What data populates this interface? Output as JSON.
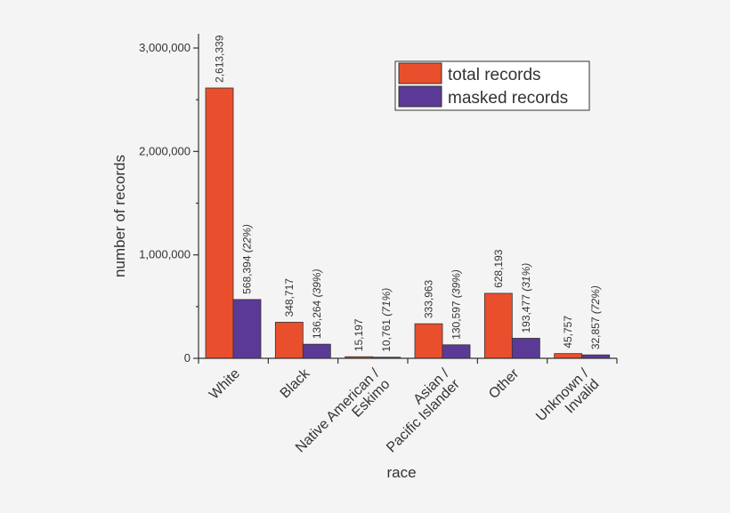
{
  "chart_data": {
    "type": "bar",
    "xlabel": "race",
    "ylabel": "number of records",
    "ylim": [
      0,
      3000000
    ],
    "yticks": [
      0,
      1000000,
      2000000,
      3000000
    ],
    "ytick_labels": [
      "0",
      "1,000,000",
      "2,000,000",
      "3,000,000"
    ],
    "grid": false,
    "legend_position": "top-right",
    "categories": [
      [
        "White"
      ],
      [
        "Black"
      ],
      [
        "Native American /",
        "Eskimo"
      ],
      [
        "Asian /",
        "Pacific Islander"
      ],
      [
        "Other"
      ],
      [
        "Unknown /",
        "Invalid"
      ]
    ],
    "series": [
      {
        "name": "total records",
        "color": "#ea4f2d",
        "values": [
          2613339,
          348717,
          15197,
          333963,
          628193,
          45757
        ],
        "labels": [
          "2,613,339",
          "348,717",
          "15,197",
          "333,963",
          "628,193",
          "45,757"
        ],
        "label_notes": [
          "",
          "",
          "",
          "",
          "",
          ""
        ]
      },
      {
        "name": "masked records",
        "color": "#5b3a97",
        "values": [
          568394,
          136264,
          10761,
          130597,
          193477,
          32857
        ],
        "labels": [
          "568,394",
          "136,264",
          "10,761",
          "130,597",
          "193,477",
          "32,857"
        ],
        "label_notes": [
          "(22%)",
          "(39%)",
          "(71%)",
          "(39%)",
          "(31%)",
          "(72%)"
        ]
      }
    ]
  }
}
